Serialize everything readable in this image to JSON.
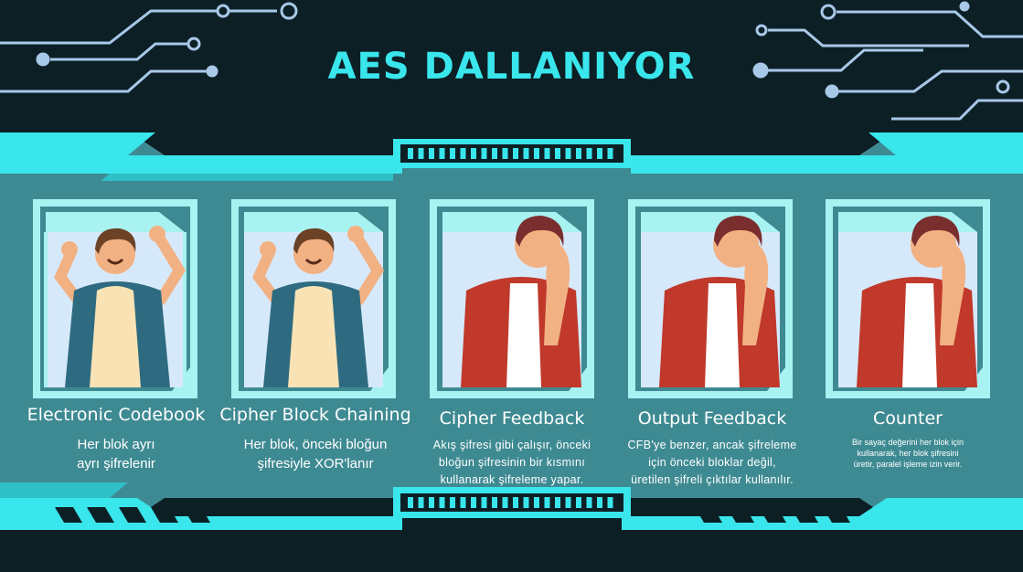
{
  "title": "AES DALLANIYOR",
  "colors": {
    "background": "#0c1f25",
    "panel": "#3e8a92",
    "accent": "#39e6ec",
    "frame": "#a8f2f2",
    "card_bg": "#d6e9fb"
  },
  "modes": [
    {
      "name": "Electronic Codebook",
      "lines": [
        "Her blok ayrı",
        "ayrı şifrelenir"
      ],
      "mood": "happy"
    },
    {
      "name": "Cipher Block Chaining",
      "lines": [
        "Her blok, önceki bloğun",
        "şifresiyle XOR'lanır"
      ],
      "mood": "happy"
    },
    {
      "name": "Cipher Feedback",
      "lines": [
        "Akış şifresi gibi çalışır, önceki",
        "bloğun şifresinin bir kısmını",
        "kullanarak şifreleme yapar."
      ],
      "mood": "sad"
    },
    {
      "name": "Output Feedback",
      "lines": [
        "CFB'ye benzer, ancak şifreleme",
        "için önceki bloklar değil,",
        "üretilen şifreli çıktılar kullanılır."
      ],
      "mood": "sad"
    },
    {
      "name": "Counter",
      "lines": [
        "Bir sayaç değerini her blok için",
        "kullanarak, her blok şifresini",
        "üretir, paralel işleme izin verir."
      ],
      "mood": "sad"
    }
  ]
}
